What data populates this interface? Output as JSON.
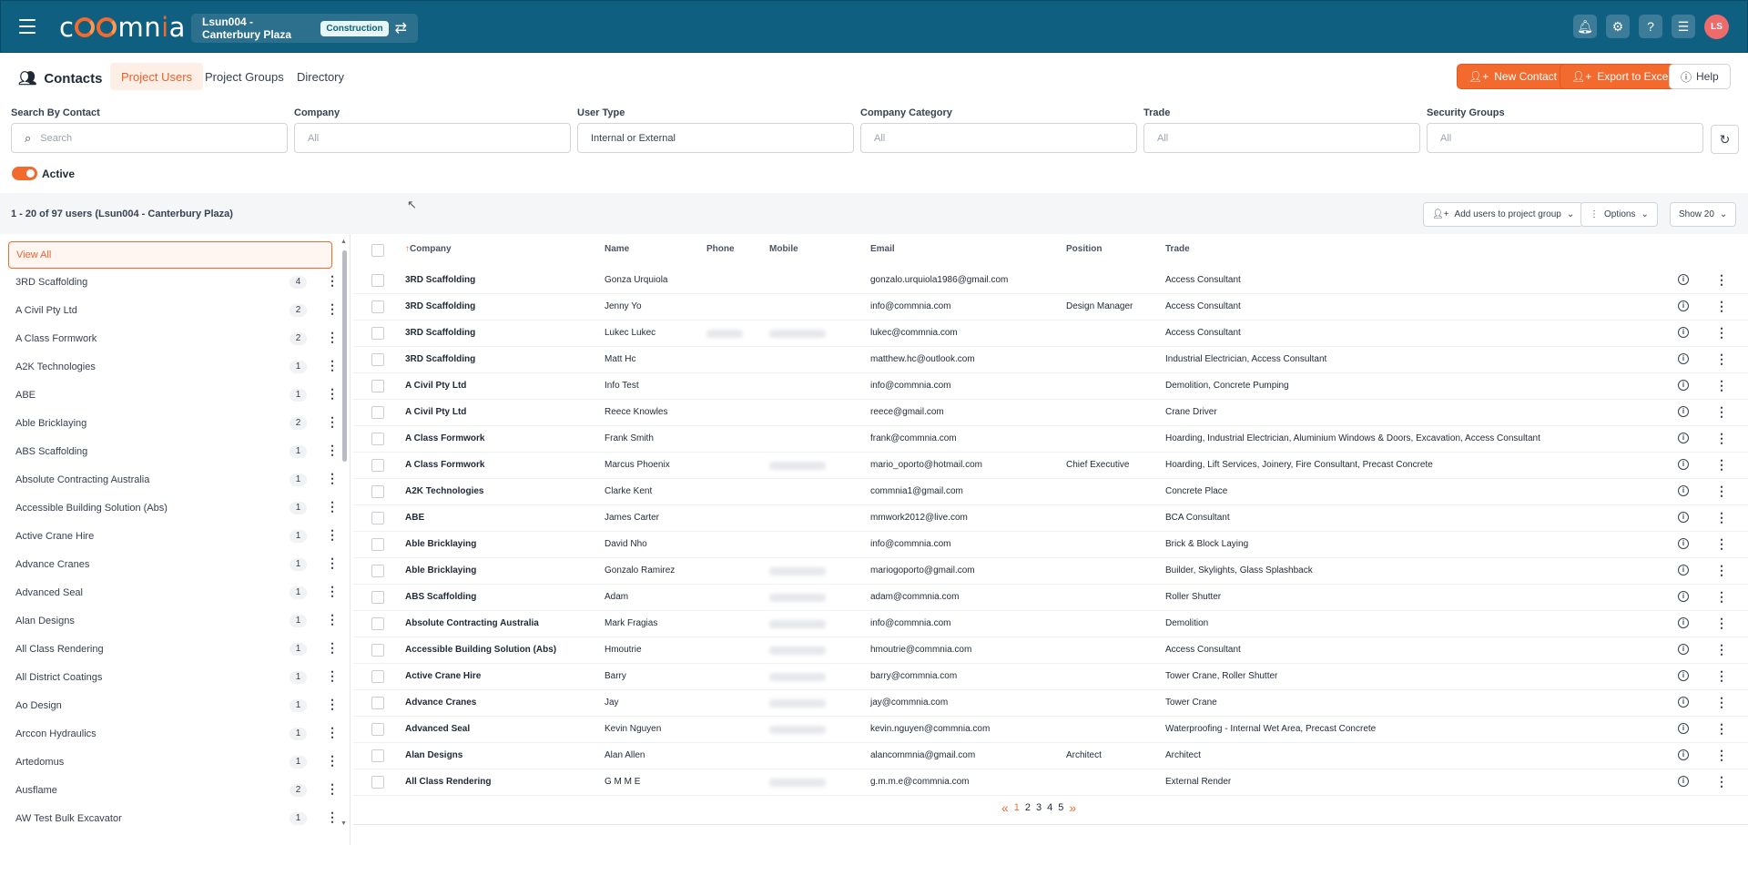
{
  "header": {
    "logo_text": "commnia",
    "project_name": "Lsun004 - Canterbury Plaza",
    "project_badge": "Construction",
    "avatar_initials": "LS",
    "brand_color": "#0f5f80",
    "accent_color": "#f26a2e"
  },
  "subheader": {
    "title": "Contacts",
    "tabs": [
      {
        "label": "Project Users",
        "active": true
      },
      {
        "label": "Project Groups",
        "active": false
      },
      {
        "label": "Directory",
        "active": false
      }
    ],
    "new_contact": "New Contact",
    "export": "Export to Excel",
    "help": "Help"
  },
  "filters": {
    "search_label": "Search By Contact",
    "search_placeholder": "Search",
    "company_label": "Company",
    "company_value": "All",
    "user_type_label": "User Type",
    "user_type_value": "Internal or External",
    "company_category_label": "Company Category",
    "company_category_value": "All",
    "trade_label": "Trade",
    "trade_value": "All",
    "security_groups_label": "Security Groups",
    "security_groups_value": "All",
    "active_label": "Active",
    "active_on": true
  },
  "results": {
    "count_text": "1 - 20 of 97 users (Lsun004 - Canterbury Plaza)",
    "add_to_group": "Add users to project group",
    "options": "Options",
    "show": "Show 20"
  },
  "sidebar": {
    "view_all": "View All",
    "items": [
      {
        "label": "3RD Scaffolding",
        "count": "4"
      },
      {
        "label": "A Civil Pty Ltd",
        "count": "2"
      },
      {
        "label": "A Class Formwork",
        "count": "2"
      },
      {
        "label": "A2K Technologies",
        "count": "1"
      },
      {
        "label": "ABE",
        "count": "1"
      },
      {
        "label": "Able Bricklaying",
        "count": "2"
      },
      {
        "label": "ABS Scaffolding",
        "count": "1"
      },
      {
        "label": "Absolute Contracting Australia",
        "count": "1"
      },
      {
        "label": "Accessible Building Solution (Abs)",
        "count": "1"
      },
      {
        "label": "Active Crane Hire",
        "count": "1"
      },
      {
        "label": "Advance Cranes",
        "count": "1"
      },
      {
        "label": "Advanced Seal",
        "count": "1"
      },
      {
        "label": "Alan Designs",
        "count": "1"
      },
      {
        "label": "All Class Rendering",
        "count": "1"
      },
      {
        "label": "All District Coatings",
        "count": "1"
      },
      {
        "label": "Ao Design",
        "count": "1"
      },
      {
        "label": "Arccon Hydraulics",
        "count": "1"
      },
      {
        "label": "Artedomus",
        "count": "1"
      },
      {
        "label": "Ausflame",
        "count": "2"
      },
      {
        "label": "AW Test Bulk Excavator",
        "count": "1"
      }
    ]
  },
  "table": {
    "headers": {
      "company": "Company",
      "name": "Name",
      "phone": "Phone",
      "mobile": "Mobile",
      "email": "Email",
      "position": "Position",
      "trade": "Trade"
    },
    "rows": [
      {
        "company": "3RD Scaffolding",
        "name": "Gonza Urquiola",
        "email": "gonzalo.urquiola1986@gmail.com",
        "position": "",
        "trade": "Access Consultant"
      },
      {
        "company": "3RD Scaffolding",
        "name": "Jenny Yo",
        "email": "info@commnia.com",
        "position": "Design Manager",
        "trade": "Access Consultant"
      },
      {
        "company": "3RD Scaffolding",
        "name": "Lukec Lukec",
        "email": "lukec@commnia.com",
        "position": "",
        "trade": "Access Consultant"
      },
      {
        "company": "3RD Scaffolding",
        "name": "Matt Hc",
        "email": "matthew.hc@outlook.com",
        "position": "",
        "trade": "Industrial Electrician, Access Consultant"
      },
      {
        "company": "A Civil Pty Ltd",
        "name": "Info Test",
        "email": "info@commnia.com",
        "position": "",
        "trade": "Demolition, Concrete Pumping"
      },
      {
        "company": "A Civil Pty Ltd",
        "name": "Reece Knowles",
        "email": "reece@gmail.com",
        "position": "",
        "trade": "Crane Driver"
      },
      {
        "company": "A Class Formwork",
        "name": "Frank Smith",
        "email": "frank@commnia.com",
        "position": "",
        "trade": "Hoarding, Industrial Electrician, Aluminium Windows & Doors, Excavation, Access Consultant"
      },
      {
        "company": "A Class Formwork",
        "name": "Marcus Phoenix",
        "email": "mario_oporto@hotmail.com",
        "position": "Chief Executive",
        "trade": "Hoarding, Lift Services, Joinery, Fire Consultant, Precast Concrete"
      },
      {
        "company": "A2K Technologies",
        "name": "Clarke Kent",
        "email": "commnia1@gmail.com",
        "position": "",
        "trade": "Concrete Place"
      },
      {
        "company": "ABE",
        "name": "James Carter",
        "email": "mmwork2012@live.com",
        "position": "",
        "trade": "BCA Consultant"
      },
      {
        "company": "Able Bricklaying",
        "name": "David Nho",
        "email": "info@commnia.com",
        "position": "",
        "trade": "Brick & Block Laying"
      },
      {
        "company": "Able Bricklaying",
        "name": "Gonzalo Ramirez",
        "email": "mariogoporto@gmail.com",
        "position": "",
        "trade": "Builder, Skylights, Glass Splashback"
      },
      {
        "company": "ABS Scaffolding",
        "name": "Adam",
        "email": "adam@commnia.com",
        "position": "",
        "trade": "Roller Shutter"
      },
      {
        "company": "Absolute Contracting Australia",
        "name": "Mark Fragias",
        "email": "info@commnia.com",
        "position": "",
        "trade": "Demolition"
      },
      {
        "company": "Accessible Building Solution (Abs)",
        "name": "Hmoutrie",
        "email": "hmoutrie@commnia.com",
        "position": "",
        "trade": "Access Consultant"
      },
      {
        "company": "Active Crane Hire",
        "name": "Barry",
        "email": "barry@commnia.com",
        "position": "",
        "trade": "Tower Crane, Roller Shutter"
      },
      {
        "company": "Advance Cranes",
        "name": "Jay",
        "email": "jay@commnia.com",
        "position": "",
        "trade": "Tower Crane"
      },
      {
        "company": "Advanced Seal",
        "name": "Kevin Nguyen",
        "email": "kevin.nguyen@commnia.com",
        "position": "",
        "trade": "Waterproofing - Internal Wet Area, Precast Concrete"
      },
      {
        "company": "Alan Designs",
        "name": "Alan Allen",
        "email": "alancommnia@gmail.com",
        "position": "Architect",
        "trade": "Architect"
      },
      {
        "company": "All Class Rendering",
        "name": "G M M E",
        "email": "g.m.m.e@commnia.com",
        "position": "",
        "trade": "External Render"
      }
    ]
  },
  "pagination": {
    "prev": "«",
    "pages": [
      "1",
      "2",
      "3",
      "4",
      "5"
    ],
    "current": "1",
    "next": "»"
  }
}
